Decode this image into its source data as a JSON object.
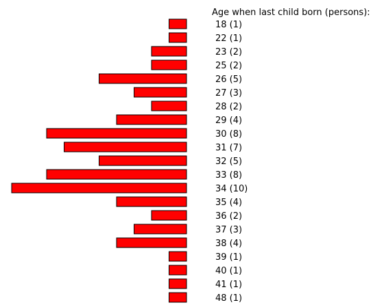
{
  "chart_data": {
    "type": "bar",
    "orientation": "horizontal",
    "direction": "right-to-left",
    "title": "Age when last child born (persons):",
    "categories": [
      "18",
      "22",
      "23",
      "25",
      "26",
      "27",
      "28",
      "29",
      "30",
      "31",
      "32",
      "33",
      "34",
      "35",
      "36",
      "37",
      "38",
      "39",
      "40",
      "41",
      "48"
    ],
    "labels": [
      "18 (1)",
      "22 (1)",
      "23 (2)",
      "25 (2)",
      "26 (5)",
      "27 (3)",
      "28 (2)",
      "29 (4)",
      "30 (8)",
      "31 (7)",
      "32 (5)",
      "33 (8)",
      "34 (10)",
      "35 (4)",
      "36 (2)",
      "37 (3)",
      "38 (4)",
      "39 (1)",
      "40 (1)",
      "41 (1)",
      "48 (1)"
    ],
    "values": [
      1,
      1,
      2,
      2,
      5,
      3,
      2,
      4,
      8,
      7,
      5,
      8,
      10,
      4,
      2,
      3,
      4,
      1,
      1,
      1,
      1
    ],
    "bar_color": "#ff0000",
    "bar_edge_color": "#000000",
    "grid": false,
    "legend": "none"
  }
}
